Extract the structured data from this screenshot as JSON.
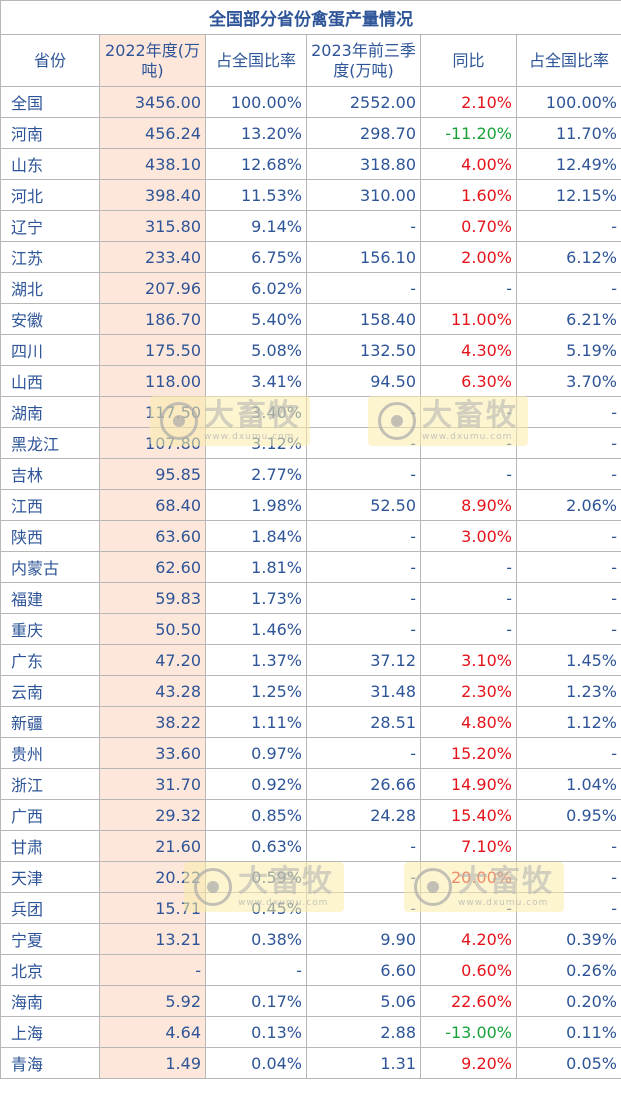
{
  "table": {
    "title": "全国部分省份禽蛋产量情况",
    "headers": [
      "省份",
      "2022年度(万吨)",
      "占全国比率",
      "2023年前三季度(万吨)",
      "同比",
      "占全国比率"
    ],
    "rows": [
      {
        "province": "全国",
        "y2022": "3456.00",
        "share2022": "100.00%",
        "q3_2023": "2552.00",
        "yoy": "2.10%",
        "share2023": "100.00%"
      },
      {
        "province": "河南",
        "y2022": "456.24",
        "share2022": "13.20%",
        "q3_2023": "298.70",
        "yoy": "-11.20%",
        "share2023": "11.70%"
      },
      {
        "province": "山东",
        "y2022": "438.10",
        "share2022": "12.68%",
        "q3_2023": "318.80",
        "yoy": "4.00%",
        "share2023": "12.49%"
      },
      {
        "province": "河北",
        "y2022": "398.40",
        "share2022": "11.53%",
        "q3_2023": "310.00",
        "yoy": "1.60%",
        "share2023": "12.15%"
      },
      {
        "province": "辽宁",
        "y2022": "315.80",
        "share2022": "9.14%",
        "q3_2023": "-",
        "yoy": "0.70%",
        "share2023": "-"
      },
      {
        "province": "江苏",
        "y2022": "233.40",
        "share2022": "6.75%",
        "q3_2023": "156.10",
        "yoy": "2.00%",
        "share2023": "6.12%"
      },
      {
        "province": "湖北",
        "y2022": "207.96",
        "share2022": "6.02%",
        "q3_2023": "-",
        "yoy": "-",
        "share2023": "-"
      },
      {
        "province": "安徽",
        "y2022": "186.70",
        "share2022": "5.40%",
        "q3_2023": "158.40",
        "yoy": "11.00%",
        "share2023": "6.21%"
      },
      {
        "province": "四川",
        "y2022": "175.50",
        "share2022": "5.08%",
        "q3_2023": "132.50",
        "yoy": "4.30%",
        "share2023": "5.19%"
      },
      {
        "province": "山西",
        "y2022": "118.00",
        "share2022": "3.41%",
        "q3_2023": "94.50",
        "yoy": "6.30%",
        "share2023": "3.70%"
      },
      {
        "province": "湖南",
        "y2022": "117.50",
        "share2022": "3.40%",
        "q3_2023": "-",
        "yoy": "-",
        "share2023": "-"
      },
      {
        "province": "黑龙江",
        "y2022": "107.80",
        "share2022": "3.12%",
        "q3_2023": "-",
        "yoy": "-",
        "share2023": "-"
      },
      {
        "province": "吉林",
        "y2022": "95.85",
        "share2022": "2.77%",
        "q3_2023": "-",
        "yoy": "-",
        "share2023": "-"
      },
      {
        "province": "江西",
        "y2022": "68.40",
        "share2022": "1.98%",
        "q3_2023": "52.50",
        "yoy": "8.90%",
        "share2023": "2.06%"
      },
      {
        "province": "陕西",
        "y2022": "63.60",
        "share2022": "1.84%",
        "q3_2023": "-",
        "yoy": "3.00%",
        "share2023": "-"
      },
      {
        "province": "内蒙古",
        "y2022": "62.60",
        "share2022": "1.81%",
        "q3_2023": "-",
        "yoy": "-",
        "share2023": "-"
      },
      {
        "province": "福建",
        "y2022": "59.83",
        "share2022": "1.73%",
        "q3_2023": "-",
        "yoy": "-",
        "share2023": "-"
      },
      {
        "province": "重庆",
        "y2022": "50.50",
        "share2022": "1.46%",
        "q3_2023": "-",
        "yoy": "-",
        "share2023": "-"
      },
      {
        "province": "广东",
        "y2022": "47.20",
        "share2022": "1.37%",
        "q3_2023": "37.12",
        "yoy": "3.10%",
        "share2023": "1.45%"
      },
      {
        "province": "云南",
        "y2022": "43.28",
        "share2022": "1.25%",
        "q3_2023": "31.48",
        "yoy": "2.30%",
        "share2023": "1.23%"
      },
      {
        "province": "新疆",
        "y2022": "38.22",
        "share2022": "1.11%",
        "q3_2023": "28.51",
        "yoy": "4.80%",
        "share2023": "1.12%"
      },
      {
        "province": "贵州",
        "y2022": "33.60",
        "share2022": "0.97%",
        "q3_2023": "-",
        "yoy": "15.20%",
        "share2023": "-"
      },
      {
        "province": "浙江",
        "y2022": "31.70",
        "share2022": "0.92%",
        "q3_2023": "26.66",
        "yoy": "14.90%",
        "share2023": "1.04%"
      },
      {
        "province": "广西",
        "y2022": "29.32",
        "share2022": "0.85%",
        "q3_2023": "24.28",
        "yoy": "15.40%",
        "share2023": "0.95%"
      },
      {
        "province": "甘肃",
        "y2022": "21.60",
        "share2022": "0.63%",
        "q3_2023": "-",
        "yoy": "7.10%",
        "share2023": "-"
      },
      {
        "province": "天津",
        "y2022": "20.22",
        "share2022": "0.59%",
        "q3_2023": "-",
        "yoy": "20.00%",
        "share2023": "-"
      },
      {
        "province": "兵团",
        "y2022": "15.71",
        "share2022": "0.45%",
        "q3_2023": "-",
        "yoy": "-",
        "share2023": "-"
      },
      {
        "province": "宁夏",
        "y2022": "13.21",
        "share2022": "0.38%",
        "q3_2023": "9.90",
        "yoy": "4.20%",
        "share2023": "0.39%"
      },
      {
        "province": "北京",
        "y2022": "-",
        "share2022": "-",
        "q3_2023": "6.60",
        "yoy": "0.60%",
        "share2023": "0.26%"
      },
      {
        "province": "海南",
        "y2022": "5.92",
        "share2022": "0.17%",
        "q3_2023": "5.06",
        "yoy": "22.60%",
        "share2023": "0.20%"
      },
      {
        "province": "上海",
        "y2022": "4.64",
        "share2022": "0.13%",
        "q3_2023": "2.88",
        "yoy": "-13.00%",
        "share2023": "0.11%"
      },
      {
        "province": "青海",
        "y2022": "1.49",
        "share2022": "0.04%",
        "q3_2023": "1.31",
        "yoy": "9.20%",
        "share2023": "0.05%"
      }
    ]
  },
  "watermark": {
    "cn": "大畜牧",
    "en": "www.dxumu.com"
  },
  "colors": {
    "text": "#2e5597",
    "positive": "#e5141b",
    "negative": "#19a23a",
    "shade": "#fde6da",
    "border": "#b7b7b7"
  }
}
